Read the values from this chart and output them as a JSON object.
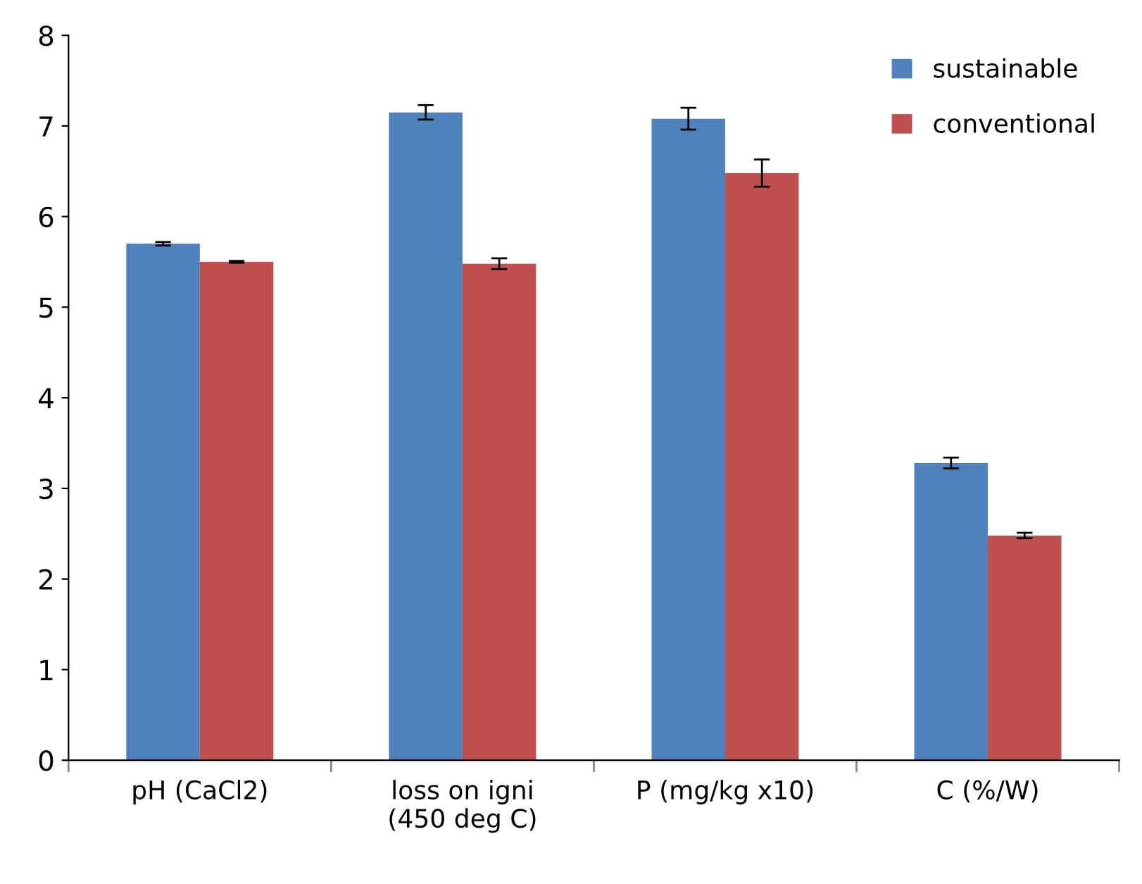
{
  "chart_data": {
    "type": "bar",
    "categories": [
      "pH (CaCl2)",
      "loss on igni\n(450 deg C)",
      "P (mg/kg x10)",
      "C (%/W)"
    ],
    "series": [
      {
        "name": "sustainable",
        "color": "#4f81bd",
        "values": [
          5.7,
          7.15,
          7.08,
          3.28
        ],
        "errors": [
          0.02,
          0.08,
          0.12,
          0.06
        ]
      },
      {
        "name": "conventional",
        "color": "#c0504d",
        "values": [
          5.5,
          5.48,
          6.48,
          2.48
        ],
        "errors": [
          0.01,
          0.06,
          0.15,
          0.03
        ]
      }
    ],
    "ylim": [
      0,
      8
    ],
    "yticks": [
      0,
      1,
      2,
      3,
      4,
      5,
      6,
      7,
      8
    ],
    "grid": false,
    "legend": "top right"
  }
}
